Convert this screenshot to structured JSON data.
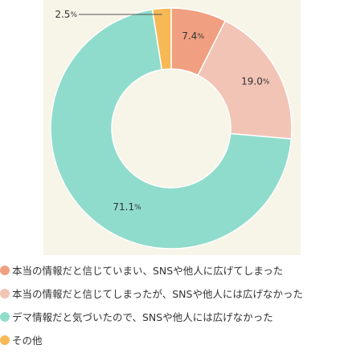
{
  "chart_data": {
    "type": "pie",
    "donut": true,
    "start_angle_deg": 0,
    "direction": "clockwise",
    "slices": [
      {
        "label": "本当の情報だと信じていまい、SNSや他人に広げてしまった",
        "value": 7.4,
        "value_label": "7.4",
        "color": "#f0a080"
      },
      {
        "label": "本当の情報だと信じてしまったが、SNSや他人には広げなかった",
        "value": 19.0,
        "value_label": "19.0",
        "color": "#f2c4b6"
      },
      {
        "label": "デマ情報だと気づいたので、SNSや他人には広げなかった",
        "value": 71.1,
        "value_label": "71.1",
        "color": "#90dccc"
      },
      {
        "label": "その他",
        "value": 2.5,
        "value_label": "2.5",
        "color": "#f6b955"
      }
    ],
    "percent_sign": "%",
    "legend_position": "bottom-left"
  }
}
